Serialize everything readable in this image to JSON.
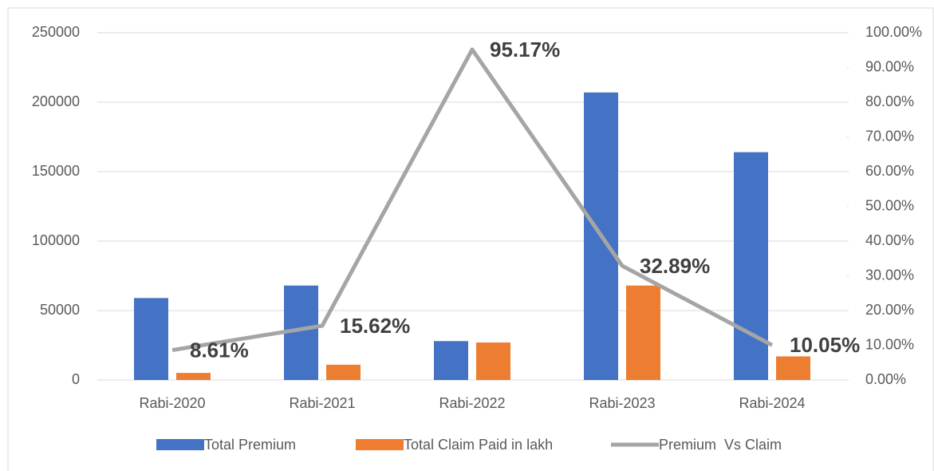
{
  "chart_data": {
    "type": "bar",
    "categories": [
      "Rabi-2020",
      "Rabi-2021",
      "Rabi-2022",
      "Rabi-2023",
      "Rabi-2024"
    ],
    "series": [
      {
        "name": "Total Premium",
        "color": "#4472c4",
        "values": [
          59000,
          68000,
          28000,
          207000,
          164000
        ]
      },
      {
        "name": "Total Claim Paid in lakh",
        "color": "#ed7d31",
        "values": [
          5100,
          11000,
          27000,
          68000,
          17000
        ]
      },
      {
        "name": "Premium  Vs Claim",
        "type": "line",
        "axis": "y2",
        "color": "#a5a5a5",
        "values": [
          8.61,
          15.62,
          95.17,
          32.89,
          10.05
        ],
        "value_labels": [
          "8.61%",
          "15.62%",
          "95.17%",
          "32.89%",
          "10.05%"
        ]
      }
    ],
    "ylim": [
      0,
      250000
    ],
    "yticks": [
      0,
      50000,
      100000,
      150000,
      200000,
      250000
    ],
    "y2lim": [
      0,
      100
    ],
    "y2ticks": [
      {
        "value": 0,
        "label": "0.00%"
      },
      {
        "value": 10,
        "label": "10.00%"
      },
      {
        "value": 20,
        "label": "20.00%"
      },
      {
        "value": 30,
        "label": "30.00%"
      },
      {
        "value": 40,
        "label": "40.00%"
      },
      {
        "value": 50,
        "label": "50.00%"
      },
      {
        "value": 60,
        "label": "60.00%"
      },
      {
        "value": 70,
        "label": "70.00%"
      },
      {
        "value": 80,
        "label": "80.00%"
      },
      {
        "value": 90,
        "label": "90.00%"
      },
      {
        "value": 100,
        "label": "100.00%"
      }
    ],
    "grid": true,
    "legend": "bottom"
  }
}
